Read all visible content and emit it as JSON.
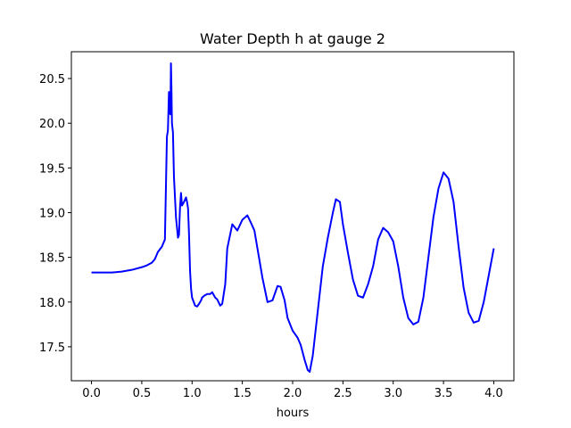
{
  "chart_data": {
    "type": "line",
    "title": "Water Depth h at gauge 2",
    "xlabel": "hours",
    "ylabel": "",
    "xlim": [
      -0.2,
      4.2
    ],
    "ylim": [
      17.12,
      20.8
    ],
    "xticks": [
      0.0,
      0.5,
      1.0,
      1.5,
      2.0,
      2.5,
      3.0,
      3.5,
      4.0
    ],
    "xtick_labels": [
      "0.0",
      "0.5",
      "1.0",
      "1.5",
      "2.0",
      "2.5",
      "3.0",
      "3.5",
      "4.0"
    ],
    "yticks": [
      17.5,
      18.0,
      18.5,
      19.0,
      19.5,
      20.0,
      20.5
    ],
    "ytick_labels": [
      "17.5",
      "18.0",
      "18.5",
      "19.0",
      "19.5",
      "20.0",
      "20.5"
    ],
    "grid": false,
    "series": [
      {
        "color": "#0000ff",
        "x": [
          0.0,
          0.2,
          0.3,
          0.4,
          0.5,
          0.55,
          0.6,
          0.63,
          0.66,
          0.7,
          0.73,
          0.75,
          0.76,
          0.77,
          0.78,
          0.785,
          0.79,
          0.795,
          0.8,
          0.81,
          0.82,
          0.84,
          0.86,
          0.87,
          0.88,
          0.89,
          0.9,
          0.91,
          0.92,
          0.94,
          0.95,
          0.96,
          0.97,
          0.98,
          0.99,
          1.0,
          1.03,
          1.05,
          1.07,
          1.09,
          1.1,
          1.12,
          1.15,
          1.18,
          1.2,
          1.23,
          1.25,
          1.28,
          1.3,
          1.33,
          1.35,
          1.4,
          1.45,
          1.5,
          1.55,
          1.58,
          1.62,
          1.65,
          1.7,
          1.75,
          1.8,
          1.85,
          1.88,
          1.92,
          1.95,
          2.0,
          2.05,
          2.08,
          2.12,
          2.15,
          2.17,
          2.2,
          2.25,
          2.3,
          2.35,
          2.4,
          2.43,
          2.47,
          2.5,
          2.55,
          2.6,
          2.65,
          2.7,
          2.75,
          2.8,
          2.85,
          2.9,
          2.95,
          3.0,
          3.05,
          3.1,
          3.15,
          3.2,
          3.25,
          3.3,
          3.35,
          3.4,
          3.45,
          3.5,
          3.55,
          3.6,
          3.65,
          3.7,
          3.75,
          3.8,
          3.85,
          3.9,
          3.95,
          4.0
        ],
        "y": [
          18.33,
          18.33,
          18.34,
          18.36,
          18.39,
          18.41,
          18.44,
          18.48,
          18.56,
          18.62,
          18.7,
          19.85,
          19.92,
          20.35,
          20.12,
          20.1,
          20.67,
          20.4,
          20.0,
          19.9,
          19.4,
          18.95,
          18.72,
          18.75,
          19.05,
          19.22,
          19.08,
          19.1,
          19.12,
          19.17,
          19.12,
          19.05,
          18.75,
          18.35,
          18.15,
          18.05,
          17.96,
          17.95,
          17.98,
          18.02,
          18.05,
          18.07,
          18.09,
          18.09,
          18.11,
          18.05,
          18.03,
          17.96,
          17.98,
          18.2,
          18.6,
          18.87,
          18.8,
          18.92,
          18.97,
          18.9,
          18.8,
          18.6,
          18.27,
          18.0,
          18.02,
          18.18,
          18.17,
          18.02,
          17.82,
          17.68,
          17.6,
          17.52,
          17.35,
          17.24,
          17.22,
          17.4,
          17.9,
          18.4,
          18.72,
          19.0,
          19.15,
          19.12,
          18.87,
          18.55,
          18.25,
          18.07,
          18.05,
          18.2,
          18.4,
          18.7,
          18.83,
          18.78,
          18.68,
          18.4,
          18.05,
          17.82,
          17.75,
          17.78,
          18.05,
          18.5,
          18.95,
          19.27,
          19.45,
          19.38,
          19.12,
          18.62,
          18.16,
          17.88,
          17.77,
          17.79,
          18.0,
          18.3,
          18.6
        ]
      }
    ]
  }
}
